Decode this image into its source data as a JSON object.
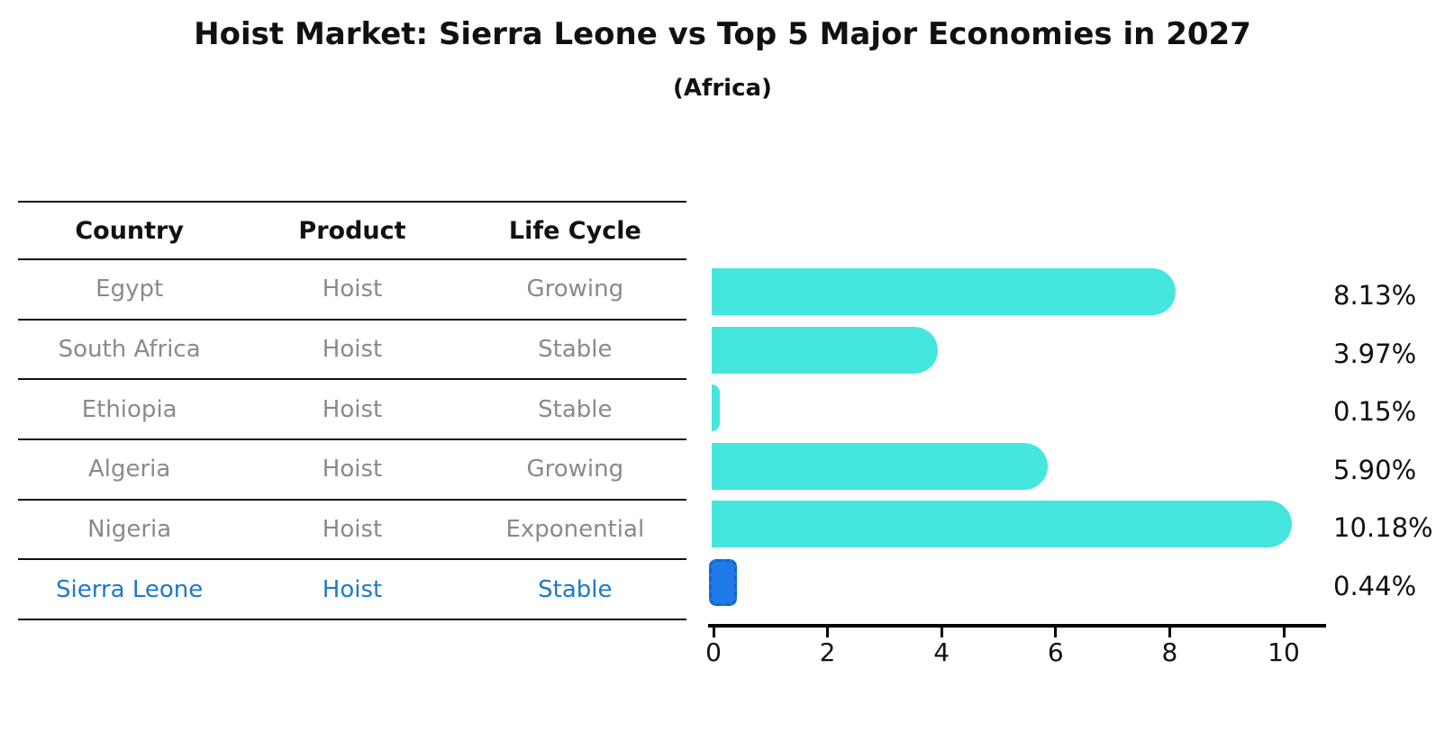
{
  "title": "Hoist Market: Sierra Leone vs Top 5 Major Economies in 2027",
  "subtitle": "(Africa)",
  "table": {
    "headers": [
      "Country",
      "Product",
      "Life Cycle"
    ],
    "rows": [
      {
        "country": "Egypt",
        "product": "Hoist",
        "life_cycle": "Growing",
        "highlight": false
      },
      {
        "country": "South Africa",
        "product": "Hoist",
        "life_cycle": "Stable",
        "highlight": false
      },
      {
        "country": "Ethiopia",
        "product": "Hoist",
        "life_cycle": "Stable",
        "highlight": false
      },
      {
        "country": "Algeria",
        "product": "Hoist",
        "life_cycle": "Growing",
        "highlight": false
      },
      {
        "country": "Nigeria",
        "product": "Hoist",
        "life_cycle": "Exponential",
        "highlight": false
      },
      {
        "country": "Sierra Leone",
        "product": "Hoist",
        "life_cycle": "Stable",
        "highlight": true
      }
    ]
  },
  "chart_data": {
    "type": "bar",
    "orientation": "horizontal",
    "title": "Hoist Market: Sierra Leone vs Top 5 Major Economies in 2027",
    "subtitle": "(Africa)",
    "categories": [
      "Egypt",
      "South Africa",
      "Ethiopia",
      "Algeria",
      "Nigeria",
      "Sierra Leone"
    ],
    "values": [
      8.13,
      3.97,
      0.15,
      5.9,
      10.18,
      0.44
    ],
    "value_labels": [
      "8.13%",
      "3.97%",
      "0.15%",
      "5.90%",
      "10.18%",
      "0.44%"
    ],
    "x_ticks": [
      0,
      2,
      4,
      6,
      8,
      10
    ],
    "xlim": [
      0,
      10.8
    ],
    "grid": false,
    "legend": "none",
    "highlight_index": 5,
    "colors": {
      "bar": "#45E6DE",
      "highlight_bar": "#1E7AE6",
      "highlight_border": "#1462D6",
      "highlight_text": "#1F78C8",
      "row_text": "#8A8A8A",
      "header_text": "#111111",
      "axis": "#000000"
    }
  }
}
